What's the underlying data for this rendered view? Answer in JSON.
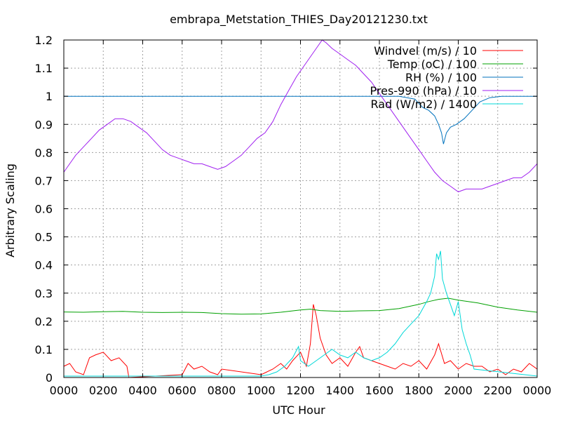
{
  "chart_data": {
    "type": "line",
    "title": "embrapa_Metstation_THIES_Day20121230.txt",
    "xlabel": "UTC Hour",
    "ylabel": "Arbitrary Scaling",
    "xlim": [
      0,
      2400
    ],
    "ylim": [
      0,
      1.2
    ],
    "grid": true,
    "legend_position": "top-right",
    "x_tick_labels": [
      "0000",
      "0200",
      "0400",
      "0600",
      "0800",
      "1000",
      "1200",
      "1400",
      "1600",
      "1800",
      "2000",
      "2200",
      "0000"
    ],
    "y_ticks": [
      0,
      0.1,
      0.2,
      0.3,
      0.4,
      0.5,
      0.6,
      0.7,
      0.8,
      0.9,
      1,
      1.1,
      1.2
    ],
    "y_tick_labels": [
      "0",
      "0.1",
      "0.2",
      "0.3",
      "0.4",
      "0.5",
      "0.6",
      "0.7",
      "0.8",
      "0.9",
      "1",
      "1.1",
      "1.2"
    ],
    "series": [
      {
        "name": "Windvel (m/s) / 10",
        "color": "#ff0000",
        "x": [
          0,
          30,
          60,
          100,
          130,
          160,
          200,
          240,
          280,
          320,
          330,
          600,
          630,
          660,
          700,
          740,
          780,
          800,
          1000,
          1030,
          1060,
          1100,
          1130,
          1160,
          1200,
          1230,
          1250,
          1265,
          1280,
          1300,
          1330,
          1360,
          1400,
          1440,
          1480,
          1500,
          1520,
          1560,
          1600,
          1640,
          1680,
          1720,
          1760,
          1800,
          1840,
          1880,
          1900,
          1930,
          1960,
          2000,
          2040,
          2080,
          2120,
          2160,
          2200,
          2240,
          2280,
          2320,
          2360,
          2400
        ],
        "y": [
          0.04,
          0.05,
          0.02,
          0.01,
          0.07,
          0.08,
          0.09,
          0.06,
          0.07,
          0.04,
          0.0,
          0.01,
          0.05,
          0.03,
          0.04,
          0.02,
          0.01,
          0.03,
          0.01,
          0.02,
          0.03,
          0.05,
          0.03,
          0.06,
          0.09,
          0.04,
          0.12,
          0.26,
          0.22,
          0.14,
          0.08,
          0.05,
          0.07,
          0.04,
          0.09,
          0.11,
          0.07,
          0.06,
          0.05,
          0.04,
          0.03,
          0.05,
          0.04,
          0.06,
          0.03,
          0.08,
          0.12,
          0.05,
          0.06,
          0.03,
          0.05,
          0.04,
          0.04,
          0.02,
          0.03,
          0.01,
          0.03,
          0.02,
          0.05,
          0.03
        ]
      },
      {
        "name": "Temp (oC) / 100",
        "color": "#00a000",
        "x": [
          0,
          100,
          200,
          300,
          400,
          500,
          600,
          700,
          800,
          900,
          1000,
          1100,
          1200,
          1250,
          1300,
          1400,
          1500,
          1600,
          1700,
          1800,
          1850,
          1900,
          1950,
          2000,
          2100,
          2200,
          2300,
          2400
        ],
        "y": [
          0.233,
          0.232,
          0.234,
          0.235,
          0.232,
          0.231,
          0.232,
          0.231,
          0.227,
          0.225,
          0.226,
          0.232,
          0.24,
          0.243,
          0.238,
          0.235,
          0.237,
          0.238,
          0.245,
          0.26,
          0.27,
          0.278,
          0.282,
          0.275,
          0.265,
          0.25,
          0.24,
          0.232
        ]
      },
      {
        "name": "RH (%) / 100",
        "color": "#0072bd",
        "x": [
          0,
          1700,
          1780,
          1820,
          1850,
          1880,
          1900,
          1915,
          1925,
          1940,
          1960,
          1990,
          2030,
          2070,
          2110,
          2160,
          2220,
          2400
        ],
        "y": [
          1.0,
          1.0,
          0.99,
          0.96,
          0.95,
          0.93,
          0.9,
          0.87,
          0.83,
          0.87,
          0.89,
          0.9,
          0.92,
          0.95,
          0.98,
          0.995,
          1.0,
          1.0
        ]
      },
      {
        "name": "Pres-990 (hPa) / 10",
        "color": "#a020f0",
        "x": [
          0,
          30,
          60,
          100,
          140,
          180,
          220,
          260,
          300,
          340,
          380,
          420,
          460,
          500,
          540,
          580,
          620,
          660,
          700,
          740,
          780,
          820,
          860,
          900,
          940,
          980,
          1020,
          1060,
          1100,
          1140,
          1180,
          1220,
          1260,
          1290,
          1310,
          1330,
          1360,
          1400,
          1440,
          1480,
          1520,
          1560,
          1600,
          1640,
          1680,
          1720,
          1760,
          1800,
          1840,
          1880,
          1920,
          1960,
          2000,
          2040,
          2080,
          2120,
          2160,
          2200,
          2240,
          2280,
          2320,
          2360,
          2400
        ],
        "y": [
          0.73,
          0.76,
          0.79,
          0.82,
          0.85,
          0.88,
          0.9,
          0.92,
          0.92,
          0.91,
          0.89,
          0.87,
          0.84,
          0.81,
          0.79,
          0.78,
          0.77,
          0.76,
          0.76,
          0.75,
          0.74,
          0.75,
          0.77,
          0.79,
          0.82,
          0.85,
          0.87,
          0.91,
          0.97,
          1.02,
          1.07,
          1.11,
          1.15,
          1.18,
          1.2,
          1.19,
          1.17,
          1.15,
          1.13,
          1.11,
          1.08,
          1.05,
          1.01,
          0.97,
          0.93,
          0.89,
          0.85,
          0.81,
          0.77,
          0.73,
          0.7,
          0.68,
          0.66,
          0.67,
          0.67,
          0.67,
          0.68,
          0.69,
          0.7,
          0.71,
          0.71,
          0.73,
          0.76
        ]
      },
      {
        "name": "Rad (W/m2) / 1400",
        "color": "#00d8d8",
        "x": [
          0,
          1000,
          1040,
          1080,
          1120,
          1160,
          1190,
          1200,
          1240,
          1280,
          1320,
          1360,
          1400,
          1440,
          1480,
          1520,
          1560,
          1600,
          1640,
          1680,
          1720,
          1760,
          1800,
          1840,
          1860,
          1880,
          1890,
          1900,
          1910,
          1920,
          1940,
          1960,
          1980,
          2000,
          2020,
          2040,
          2060,
          2080,
          2400
        ],
        "y": [
          0.005,
          0.005,
          0.01,
          0.02,
          0.04,
          0.07,
          0.11,
          0.06,
          0.04,
          0.06,
          0.08,
          0.1,
          0.08,
          0.07,
          0.09,
          0.07,
          0.06,
          0.07,
          0.09,
          0.12,
          0.16,
          0.19,
          0.22,
          0.27,
          0.3,
          0.36,
          0.44,
          0.42,
          0.45,
          0.35,
          0.3,
          0.26,
          0.22,
          0.27,
          0.17,
          0.12,
          0.08,
          0.03,
          0.005
        ]
      }
    ]
  }
}
